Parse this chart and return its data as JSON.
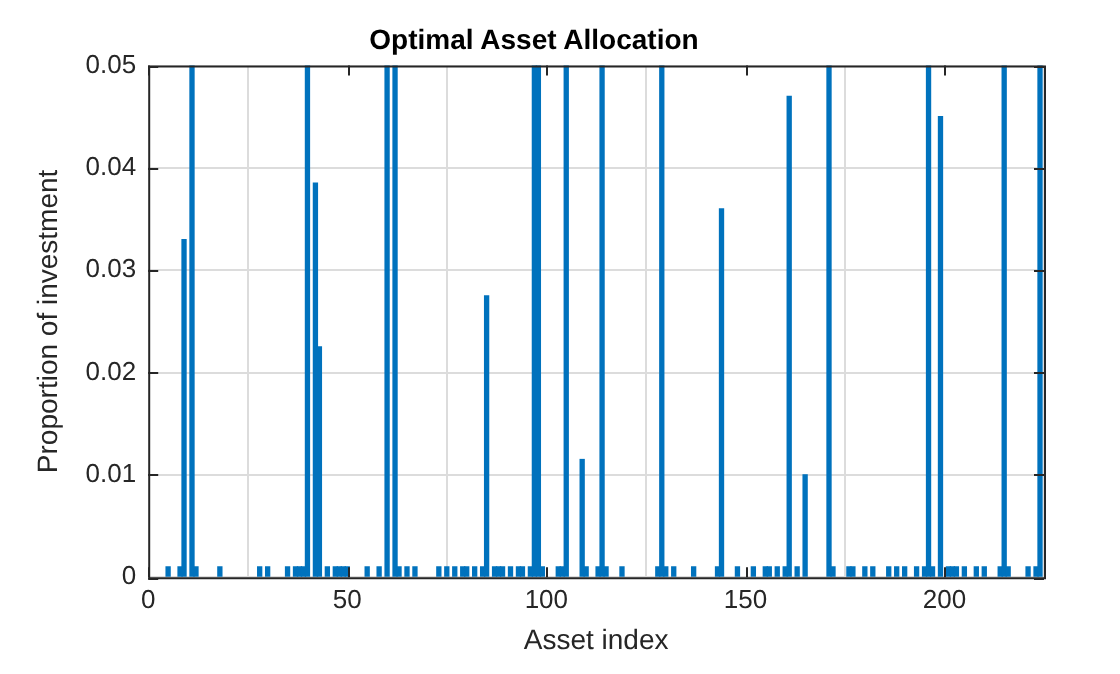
{
  "chart_data": {
    "type": "bar",
    "title": "Optimal Asset Allocation",
    "xlabel": "Asset index",
    "ylabel": "Proportion of investment",
    "color": "#0072bd",
    "x": [
      5,
      8,
      9,
      11,
      12,
      18,
      28,
      30,
      35,
      37,
      38,
      39,
      40,
      42,
      43,
      45,
      47,
      48,
      49,
      50,
      55,
      58,
      60,
      62,
      63,
      65,
      67,
      73,
      75,
      77,
      79,
      80,
      82,
      84,
      85,
      87,
      88,
      89,
      91,
      93,
      94,
      96,
      97,
      98,
      99,
      103,
      104,
      105,
      109,
      110,
      113,
      114,
      115,
      119,
      128,
      129,
      130,
      132,
      137,
      143,
      144,
      148,
      152,
      155,
      156,
      158,
      160,
      161,
      163,
      165,
      171,
      172,
      176,
      177,
      180,
      182,
      186,
      188,
      190,
      193,
      195,
      196,
      197,
      199,
      201,
      202,
      203,
      205,
      208,
      210,
      214,
      215,
      216,
      221,
      223,
      224
    ],
    "values": [
      0.001,
      0.001,
      0.033,
      0.05,
      0.001,
      0.001,
      0.001,
      0.001,
      0.001,
      0.001,
      0.001,
      0.001,
      0.05,
      0.0385,
      0.0225,
      0.001,
      0.001,
      0.001,
      0.001,
      0.001,
      0.001,
      0.001,
      0.05,
      0.05,
      0.001,
      0.001,
      0.001,
      0.001,
      0.001,
      0.001,
      0.001,
      0.001,
      0.001,
      0.001,
      0.0275,
      0.001,
      0.001,
      0.001,
      0.001,
      0.001,
      0.001,
      0.001,
      0.05,
      0.05,
      0.001,
      0.001,
      0.001,
      0.05,
      0.0115,
      0.001,
      0.001,
      0.05,
      0.001,
      0.001,
      0.001,
      0.05,
      0.001,
      0.001,
      0.001,
      0.001,
      0.036,
      0.001,
      0.001,
      0.001,
      0.001,
      0.001,
      0.001,
      0.047,
      0.001,
      0.01,
      0.05,
      0.001,
      0.001,
      0.001,
      0.001,
      0.001,
      0.001,
      0.001,
      0.001,
      0.001,
      0.001,
      0.05,
      0.001,
      0.045,
      0.001,
      0.001,
      0.001,
      0.001,
      0.001,
      0.001,
      0.001,
      0.05,
      0.001,
      0.001,
      0.001,
      0.05
    ],
    "xlim": [
      0,
      225
    ],
    "xticks": [
      0,
      50,
      100,
      150,
      200
    ],
    "ylim": [
      0,
      0.05
    ],
    "yticks": [
      0,
      0.01,
      0.02,
      0.03,
      0.04,
      0.05
    ],
    "grid": true
  }
}
